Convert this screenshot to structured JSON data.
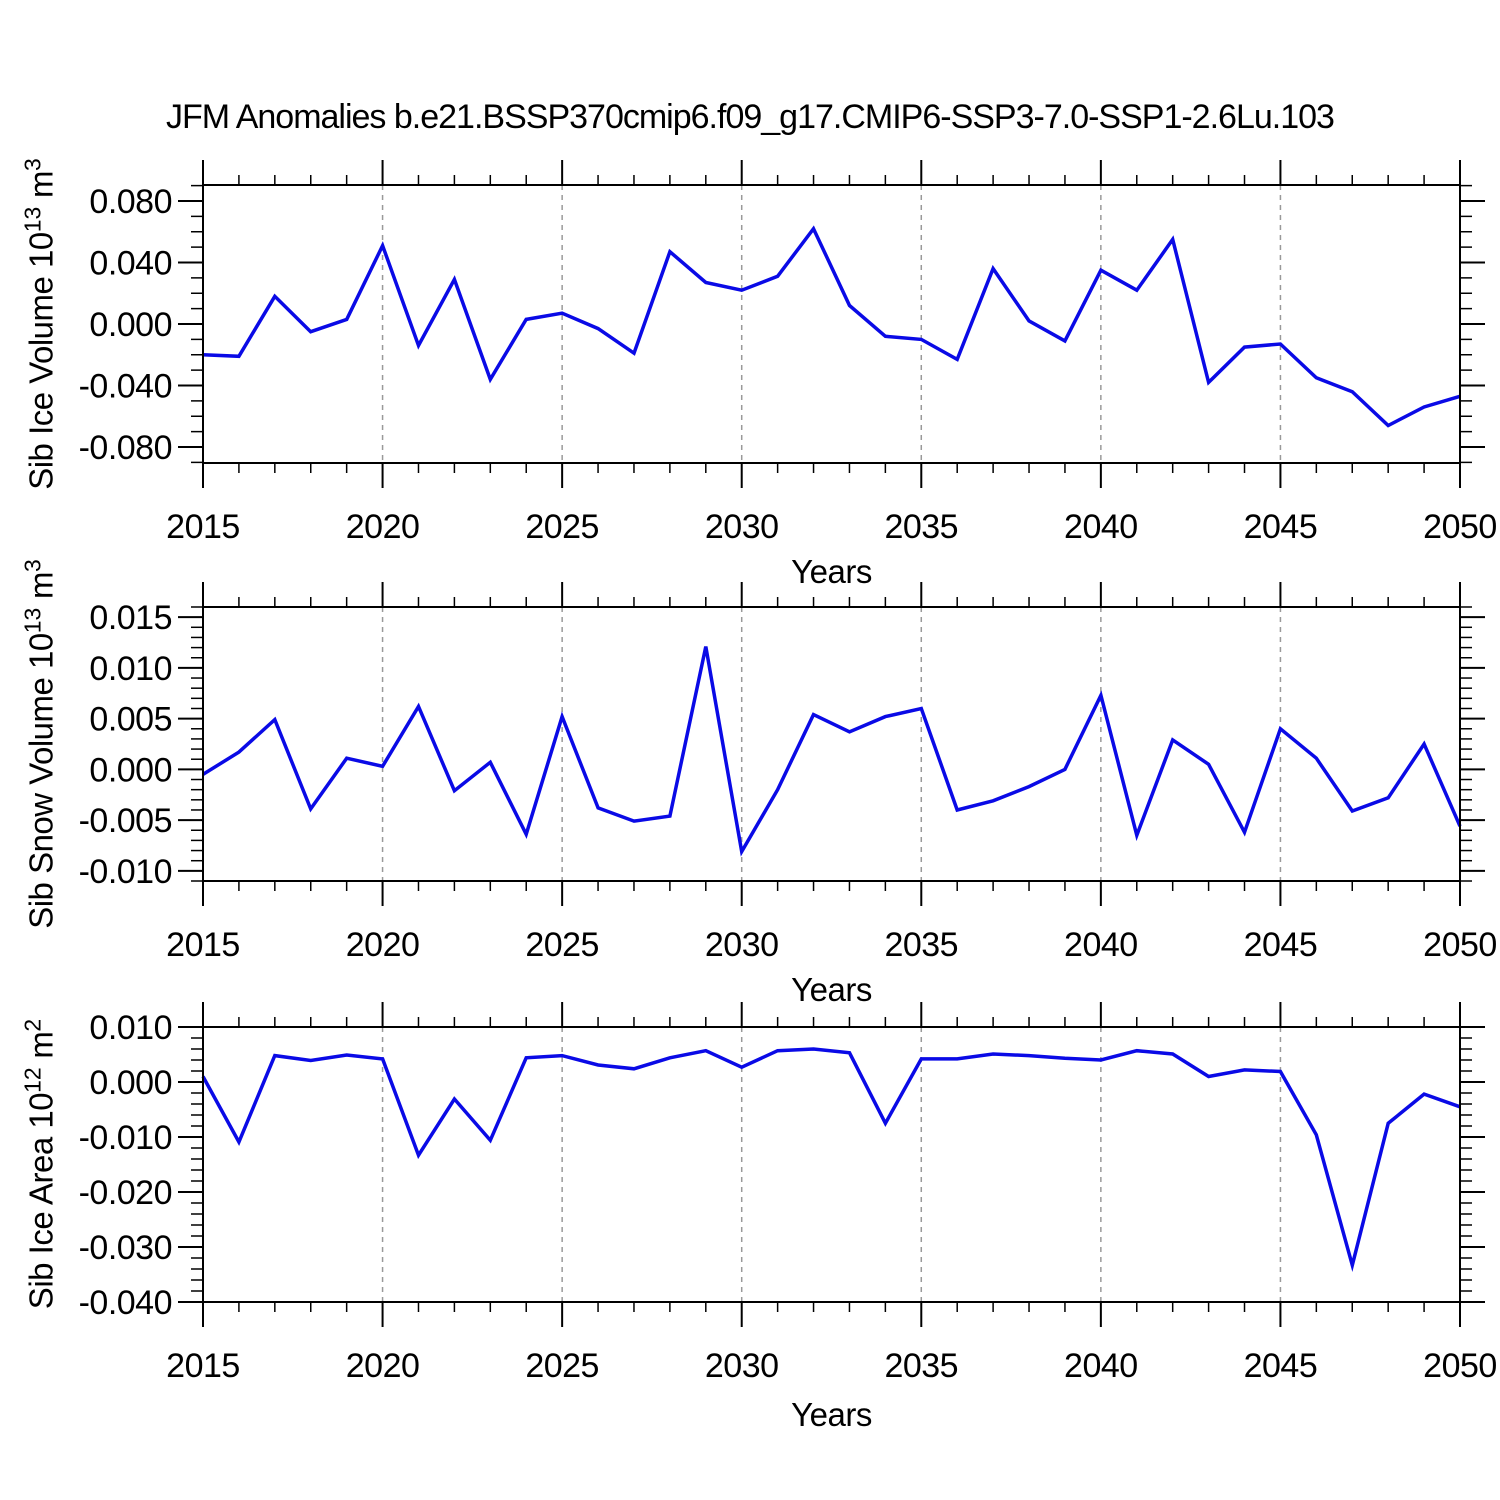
{
  "page": {
    "title": "JFM Anomalies b.e21.BSSP370cmip6.f09_g17.CMIP6-SSP3-7.0-SSP1-2.6Lu.103"
  },
  "colors": {
    "line": "#0a0ae6",
    "frame": "#000000",
    "grid": "#999999",
    "text": "#000000",
    "background": "#ffffff"
  },
  "chart_data": [
    {
      "type": "line",
      "id": "sib-ice-volume",
      "ylabel_text": "Sib Ice Volume 10^13 m^3",
      "ylabel_parts": {
        "base": "Sib Ice Volume 10",
        "exp": "13",
        "unit": " m",
        "unit_exp": "3"
      },
      "xlabel": "Years",
      "xlim": [
        2015,
        2050
      ],
      "ylim": [
        -0.0904,
        0.0904
      ],
      "x_minor_step": 1,
      "y_minor_step": 0.01,
      "xtick_values": [
        2015,
        2020,
        2025,
        2030,
        2035,
        2040,
        2045,
        2050
      ],
      "xtick_labels": [
        "2015",
        "2020",
        "2025",
        "2030",
        "2035",
        "2040",
        "2045",
        "2050"
      ],
      "ytick_values": [
        0.08,
        0.04,
        0.0,
        -0.04,
        -0.08
      ],
      "ytick_labels": [
        "0.080",
        "0.040",
        "0.000",
        "-0.040",
        "-0.080"
      ],
      "grid_x": [
        2020,
        2025,
        2030,
        2035,
        2040,
        2045
      ],
      "x": [
        2015,
        2016,
        2017,
        2018,
        2019,
        2020,
        2021,
        2022,
        2023,
        2024,
        2025,
        2026,
        2027,
        2028,
        2029,
        2030,
        2031,
        2032,
        2033,
        2034,
        2035,
        2036,
        2037,
        2038,
        2039,
        2040,
        2041,
        2042,
        2043,
        2044,
        2045,
        2046,
        2047,
        2048,
        2049,
        2050
      ],
      "values": [
        -0.02,
        -0.021,
        0.018,
        -0.005,
        0.003,
        0.051,
        -0.014,
        0.029,
        -0.036,
        0.003,
        0.007,
        -0.003,
        -0.019,
        0.047,
        0.027,
        0.022,
        0.031,
        0.062,
        0.012,
        -0.008,
        -0.01,
        -0.023,
        0.036,
        0.002,
        -0.011,
        0.035,
        0.022,
        0.055,
        -0.038,
        -0.015,
        -0.013,
        -0.035,
        -0.044,
        -0.066,
        -0.054,
        -0.047
      ]
    },
    {
      "type": "line",
      "id": "sib-snow-volume",
      "ylabel_text": "Sib Snow Volume 10^13 m^3",
      "ylabel_parts": {
        "base": "Sib Snow Volume 10",
        "exp": "13",
        "unit": " m",
        "unit_exp": "3"
      },
      "xlabel": "Years",
      "xlim": [
        2015,
        2050
      ],
      "ylim": [
        -0.011,
        0.016
      ],
      "x_minor_step": 1,
      "y_minor_step": 0.001,
      "xtick_values": [
        2015,
        2020,
        2025,
        2030,
        2035,
        2040,
        2045,
        2050
      ],
      "xtick_labels": [
        "2015",
        "2020",
        "2025",
        "2030",
        "2035",
        "2040",
        "2045",
        "2050"
      ],
      "ytick_values": [
        0.015,
        0.01,
        0.005,
        0.0,
        -0.005,
        -0.01
      ],
      "ytick_labels": [
        "0.015",
        "0.010",
        "0.005",
        "0.000",
        "-0.005",
        "-0.010"
      ],
      "grid_x": [
        2020,
        2025,
        2030,
        2035,
        2040,
        2045
      ],
      "x": [
        2015,
        2016,
        2017,
        2018,
        2019,
        2020,
        2021,
        2022,
        2023,
        2024,
        2025,
        2026,
        2027,
        2028,
        2029,
        2030,
        2031,
        2032,
        2033,
        2034,
        2035,
        2036,
        2037,
        2038,
        2039,
        2040,
        2041,
        2042,
        2043,
        2044,
        2045,
        2046,
        2047,
        2048,
        2049,
        2050
      ],
      "values": [
        -0.0005,
        0.0017,
        0.0049,
        -0.0039,
        0.0011,
        0.0003,
        0.0062,
        -0.0021,
        0.0007,
        -0.0064,
        0.0052,
        -0.0038,
        -0.0051,
        -0.0046,
        0.0121,
        -0.0081,
        -0.002,
        0.0054,
        0.0037,
        0.0052,
        0.006,
        -0.004,
        -0.0031,
        -0.0017,
        0.0,
        0.0073,
        -0.0065,
        0.0029,
        0.0005,
        -0.0062,
        0.004,
        0.0011,
        -0.0041,
        -0.0028,
        0.0025,
        -0.0056
      ]
    },
    {
      "type": "line",
      "id": "sib-ice-area",
      "ylabel_text": "Sib Ice Area 10^12 m^2",
      "ylabel_parts": {
        "base": "Sib Ice Area 10",
        "exp": "12",
        "unit": " m",
        "unit_exp": "2"
      },
      "xlabel": "Years",
      "xlim": [
        2015,
        2050
      ],
      "ylim": [
        -0.04,
        0.01
      ],
      "x_minor_step": 1,
      "y_minor_step": 0.002,
      "xtick_values": [
        2015,
        2020,
        2025,
        2030,
        2035,
        2040,
        2045,
        2050
      ],
      "xtick_labels": [
        "2015",
        "2020",
        "2025",
        "2030",
        "2035",
        "2040",
        "2045",
        "2050"
      ],
      "ytick_values": [
        0.01,
        0.0,
        -0.01,
        -0.02,
        -0.03,
        -0.04
      ],
      "ytick_labels": [
        "0.010",
        "0.000",
        "-0.010",
        "-0.020",
        "-0.030",
        "-0.040"
      ],
      "grid_x": [
        2020,
        2025,
        2030,
        2035,
        2040,
        2045
      ],
      "x": [
        2015,
        2016,
        2017,
        2018,
        2019,
        2020,
        2021,
        2022,
        2023,
        2024,
        2025,
        2026,
        2027,
        2028,
        2029,
        2030,
        2031,
        2032,
        2033,
        2034,
        2035,
        2036,
        2037,
        2038,
        2039,
        2040,
        2041,
        2042,
        2043,
        2044,
        2045,
        2046,
        2047,
        2048,
        2049,
        2050
      ],
      "values": [
        0.001,
        -0.0109,
        0.0048,
        0.0039,
        0.0049,
        0.0042,
        -0.0133,
        -0.0031,
        -0.0106,
        0.0044,
        0.0048,
        0.0031,
        0.0024,
        0.0044,
        0.0057,
        0.0027,
        0.0057,
        0.006,
        0.0053,
        -0.0075,
        0.0042,
        0.0042,
        0.0051,
        0.0048,
        0.0043,
        0.004,
        0.0057,
        0.0051,
        0.001,
        0.0022,
        0.0019,
        -0.0096,
        -0.0333,
        -0.0075,
        -0.0022,
        -0.0045
      ]
    }
  ]
}
